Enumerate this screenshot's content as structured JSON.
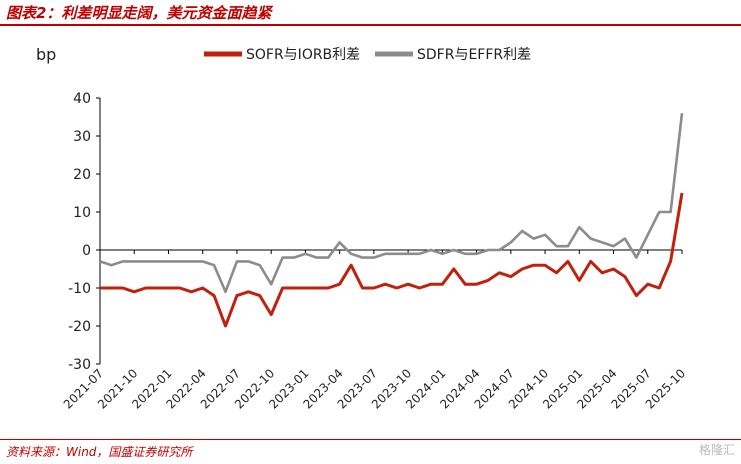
{
  "header": {
    "title": "图表2：利差明显走阔，美元资金面趋紧"
  },
  "footer": {
    "source": "资料来源：Wind，国盛证券研究所",
    "watermark": "格隆汇"
  },
  "colors": {
    "accent": "#c00000",
    "sofr_line": "#c0200c",
    "sdfr_line": "#8c8c8c"
  },
  "chart_data": {
    "type": "line",
    "title": "利差明显走阔，美元资金面趋紧",
    "ylabel": "bp",
    "ylim": [
      -30,
      40
    ],
    "yticks": [
      "40",
      "30",
      "20",
      "10",
      "0",
      "-10",
      "-20",
      "-30"
    ],
    "ytick_values": [
      40,
      30,
      20,
      10,
      0,
      -10,
      -20,
      -30
    ],
    "xticks": [
      "2021-07",
      "2021-10",
      "2022-01",
      "2022-04",
      "2022-07",
      "2022-10",
      "2023-01",
      "2023-04",
      "2023-07",
      "2023-10",
      "2024-01",
      "2024-04",
      "2024-07",
      "2024-10",
      "2025-01",
      "2025-04",
      "2025-07",
      "2025-10"
    ],
    "legend_position": "top",
    "grid": false,
    "x": [
      "2021-07",
      "2021-08",
      "2021-09",
      "2021-10",
      "2021-11",
      "2021-12",
      "2022-01",
      "2022-02",
      "2022-03",
      "2022-04",
      "2022-05",
      "2022-06",
      "2022-07",
      "2022-08",
      "2022-09",
      "2022-10",
      "2022-11",
      "2022-12",
      "2023-01",
      "2023-02",
      "2023-03",
      "2023-04",
      "2023-05",
      "2023-06",
      "2023-07",
      "2023-08",
      "2023-09",
      "2023-10",
      "2023-11",
      "2023-12",
      "2024-01",
      "2024-02",
      "2024-03",
      "2024-04",
      "2024-05",
      "2024-06",
      "2024-07",
      "2024-08",
      "2024-09",
      "2024-10",
      "2024-11",
      "2024-12",
      "2025-01",
      "2025-02",
      "2025-03",
      "2025-04",
      "2025-05",
      "2025-06",
      "2025-07",
      "2025-08",
      "2025-09",
      "2025-10"
    ],
    "series": [
      {
        "name": "SOFR与IORB利差",
        "color": "#c0200c",
        "values": [
          -10,
          -10,
          -10,
          -11,
          -10,
          -10,
          -10,
          -10,
          -11,
          -10,
          -12,
          -20,
          -12,
          -11,
          -12,
          -17,
          -10,
          -10,
          -10,
          -10,
          -10,
          -9,
          -4,
          -10,
          -10,
          -9,
          -10,
          -9,
          -10,
          -9,
          -9,
          -5,
          -9,
          -9,
          -8,
          -6,
          -7,
          -5,
          -4,
          -4,
          -6,
          -3,
          -8,
          -3,
          -6,
          -5,
          -7,
          -12,
          -9,
          -10,
          -3,
          15
        ]
      },
      {
        "name": "SDFR与EFFR利差",
        "color": "#8c8c8c",
        "values": [
          -3,
          -4,
          -3,
          -3,
          -3,
          -3,
          -3,
          -3,
          -3,
          -3,
          -4,
          -11,
          -3,
          -3,
          -4,
          -9,
          -2,
          -2,
          -1,
          -2,
          -2,
          2,
          -1,
          -2,
          -2,
          -1,
          -1,
          -1,
          -1,
          0,
          -1,
          0,
          -1,
          -1,
          0,
          0,
          2,
          5,
          3,
          4,
          1,
          1,
          6,
          3,
          2,
          1,
          3,
          -2,
          4,
          10,
          10,
          36
        ]
      }
    ]
  }
}
